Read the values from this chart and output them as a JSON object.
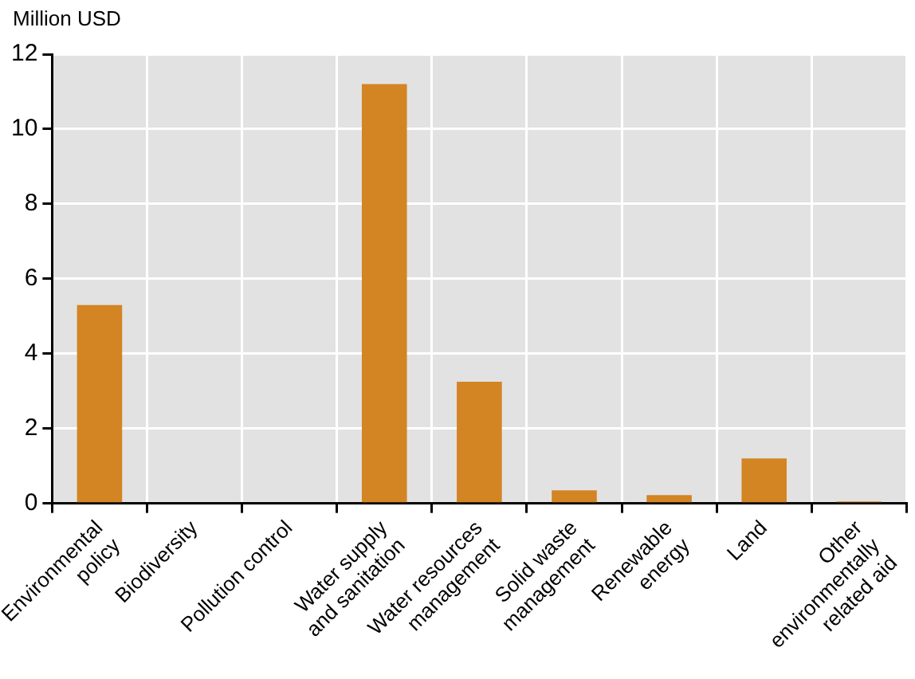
{
  "chart_data": {
    "type": "bar",
    "ylabel": "Million USD",
    "categories": [
      "Environmental\npolicy",
      "Biodiversity",
      "Pollution control",
      "Water supply\nand sanitation",
      "Water resources\nmanagement",
      "Solid waste\nmanagement",
      "Renewable\nenergy",
      "Land",
      "Other\nenvironmentally\nrelated aid"
    ],
    "values": [
      5.3,
      null,
      null,
      11.2,
      3.25,
      0.35,
      0.22,
      1.2,
      0.05
    ],
    "color": "#d38423",
    "ylim": [
      0,
      12
    ],
    "yticks": [
      0,
      2,
      4,
      6,
      8,
      10,
      12
    ],
    "grid": true
  }
}
